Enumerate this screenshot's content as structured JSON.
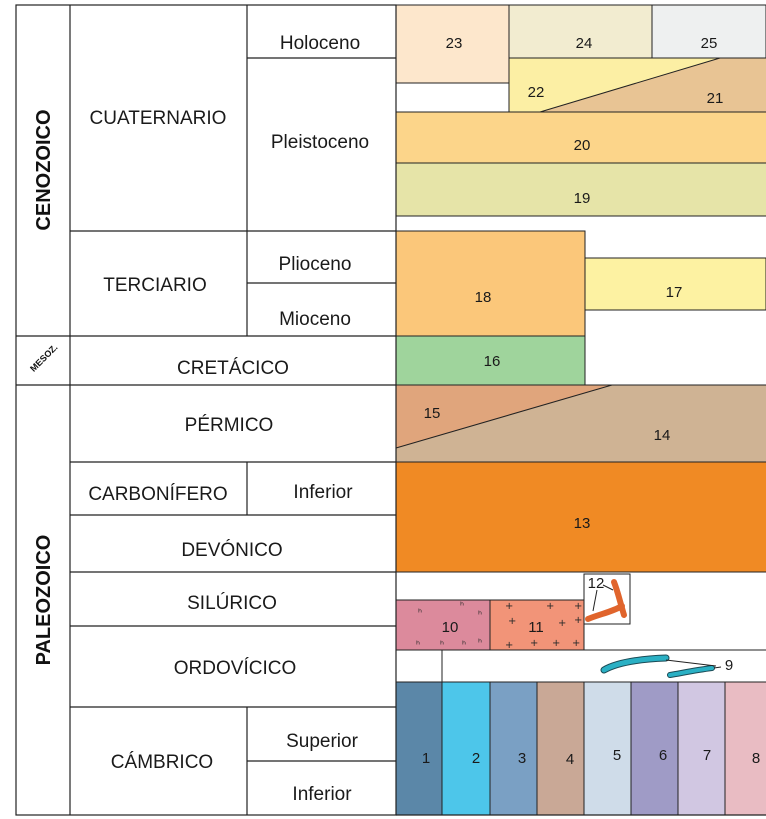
{
  "eras": {
    "cenozoic": "CENOZOICO",
    "mesozoic": "MESOZ.",
    "paleozoic": "PALEOZOICO"
  },
  "periods": {
    "cuaternario": "CUATERNARIO",
    "terciario": "TERCIARIO",
    "cretacico": "CRETÁCICO",
    "permico": "PÉRMICO",
    "carbonifero": "CARBONÍFERO",
    "devonico": "DEVÓNICO",
    "silurico": "SILÚRICO",
    "ordovicico": "ORDOVÍCICO",
    "cambrico": "CÁMBRICO"
  },
  "epochs": {
    "holoceno": "Holoceno",
    "pleistoceno": "Pleistoceno",
    "plioceno": "Plioceno",
    "mioceno": "Mioceno",
    "carb_inferior": "Inferior",
    "camb_superior": "Superior",
    "camb_inferior": "Inferior"
  },
  "units": {
    "u1": "1",
    "u2": "2",
    "u3": "3",
    "u4": "4",
    "u5": "5",
    "u6": "6",
    "u7": "7",
    "u8": "8",
    "u9": "9",
    "u10": "10",
    "u11": "11",
    "u12": "12",
    "u13": "13",
    "u14": "14",
    "u15": "15",
    "u16": "16",
    "u17": "17",
    "u18": "18",
    "u19": "19",
    "u20": "20",
    "u21": "21",
    "u22": "22",
    "u23": "23",
    "u24": "24",
    "u25": "25"
  },
  "colors": {
    "u1": "#5b87a8",
    "u2": "#4dc6ea",
    "u3": "#7aa0c4",
    "u4": "#c9a896",
    "u5": "#cfdce9",
    "u6": "#9f9bc6",
    "u7": "#d1c7e2",
    "u8": "#e9bcc3",
    "u9": "#2ab0c4",
    "u10": "#dc8a9c",
    "u11": "#f29478",
    "u12": "#e0642c",
    "u13": "#f08a24",
    "u14": "#cfb394",
    "u15": "#e0a57c",
    "u16": "#9fd49c",
    "u17": "#fdf2a2",
    "u18": "#fbc77a",
    "u19": "#e6e4a8",
    "u20": "#fcd58a",
    "u21": "#e8c494",
    "u22": "#fcefa4",
    "u23": "#fde7cc",
    "u24": "#f2ecd0",
    "u25": "#eef0f0"
  }
}
